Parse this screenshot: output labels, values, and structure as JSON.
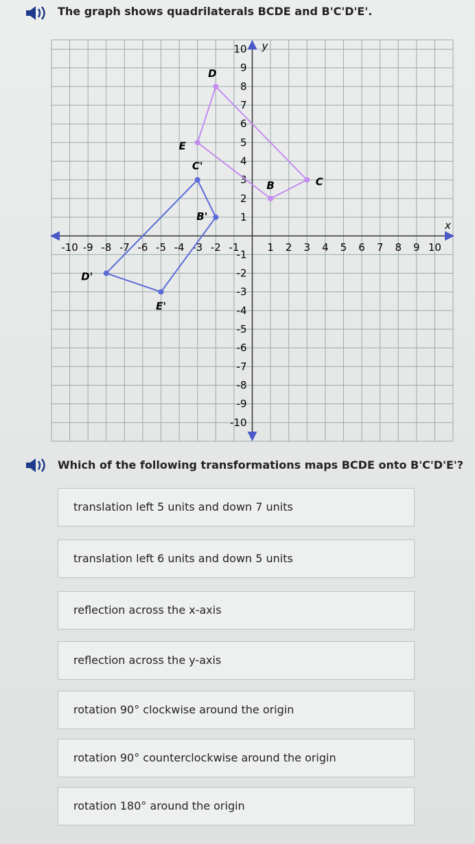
{
  "header": {
    "text": "The graph shows quadrilaterals BCDE and B'C'D'E'."
  },
  "graph": {
    "xlabel": "x",
    "ylabel": "y",
    "xlim": [
      -11,
      11
    ],
    "ylim": [
      -11,
      10.5
    ],
    "xticks": [
      -10,
      -9,
      -8,
      -7,
      -6,
      -5,
      -4,
      -3,
      -2,
      -1,
      1,
      2,
      3,
      4,
      5,
      6,
      7,
      8,
      9,
      10
    ],
    "yticks": [
      -10,
      -9,
      -8,
      -7,
      -6,
      -5,
      -4,
      -3,
      -2,
      -1,
      1,
      2,
      3,
      4,
      5,
      6,
      7,
      8,
      9,
      10
    ],
    "shapes": [
      {
        "color": "#c48cf0",
        "points": [
          {
            "label": "B",
            "x": 1,
            "y": 2
          },
          {
            "label": "C",
            "x": 3,
            "y": 3
          },
          {
            "label": "D",
            "x": -2,
            "y": 8
          },
          {
            "label": "E",
            "x": -3,
            "y": 5
          }
        ]
      },
      {
        "color": "#5b6ad8",
        "points": [
          {
            "label": "B'",
            "x": -2,
            "y": 1
          },
          {
            "label": "C'",
            "x": -3,
            "y": 3
          },
          {
            "label": "D'",
            "x": -8,
            "y": -2
          },
          {
            "label": "E'",
            "x": -5,
            "y": -3
          }
        ]
      }
    ]
  },
  "question": {
    "text": "Which of the following transformations maps BCDE onto B'C'D'E'?"
  },
  "choices": [
    "translation left 5 units and down 7 units",
    "translation left 6 units and down 5 units",
    "reflection across the x-axis",
    "reflection across the y-axis",
    "rotation 90° clockwise around the origin",
    "rotation 90° counterclockwise around the origin",
    "rotation 180° around the origin"
  ]
}
